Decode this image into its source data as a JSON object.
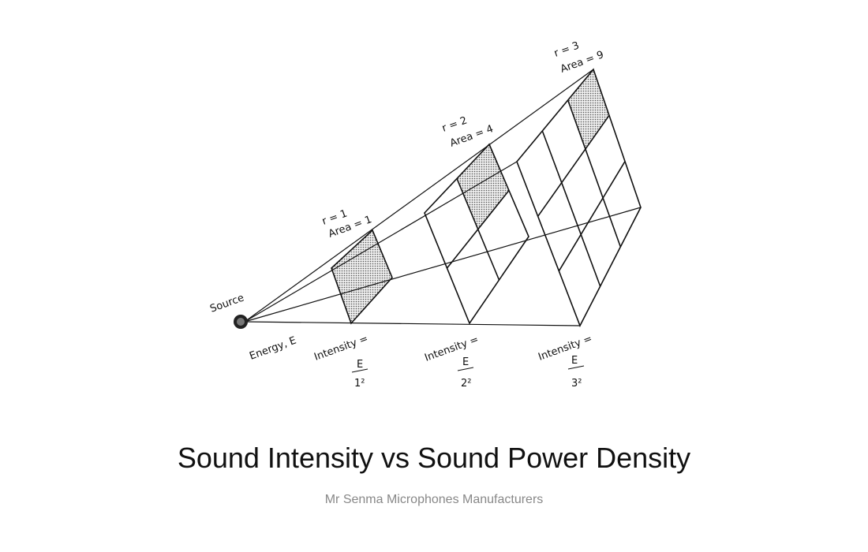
{
  "diagram": {
    "source": "Source",
    "energy": "Energy, E",
    "planes": [
      {
        "radius": "r = 1",
        "area": "Area = 1",
        "intensity": "Intensity =",
        "numerator": "E",
        "denominator": "1²"
      },
      {
        "radius": "r = 2",
        "area": "Area = 4",
        "intensity": "Intensity =",
        "numerator": "E",
        "denominator": "2²"
      },
      {
        "radius": "r = 3",
        "area": "Area = 9",
        "intensity": "Intensity =",
        "numerator": "E",
        "denominator": "3²"
      }
    ]
  },
  "title": "Sound Intensity vs Sound Power Density",
  "subtitle": "Mr Senma Microphones Manufacturers"
}
